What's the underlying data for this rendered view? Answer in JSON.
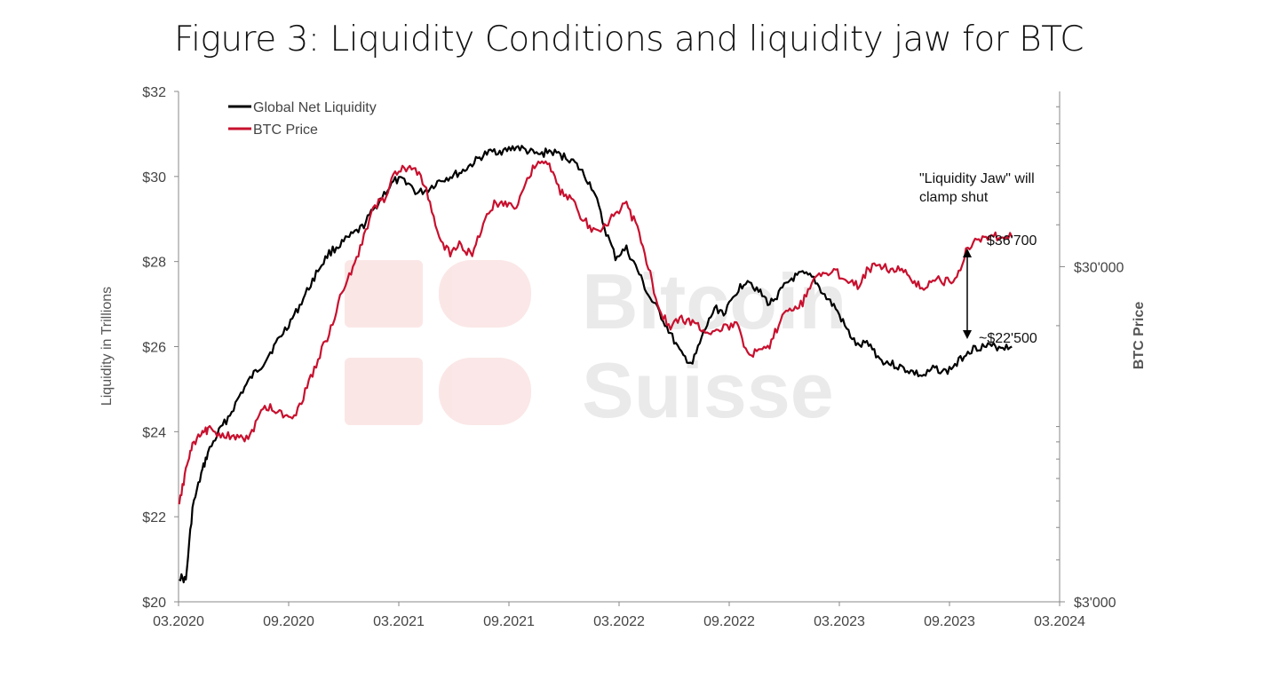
{
  "title": "Figure 3: Liquidity Conditions and liquidity jaw for BTC",
  "colors": {
    "liquidity": "#000000",
    "btc": "#c8102e",
    "axis": "#888888",
    "text": "#444444"
  },
  "watermark": {
    "line1": "Bitcoin",
    "line2": "Suisse"
  },
  "chart_data": {
    "type": "line",
    "title": "Figure 3: Liquidity Conditions and liquidity jaw for BTC",
    "x_ticks": [
      "03.2020",
      "09.2020",
      "03.2021",
      "09.2021",
      "03.2022",
      "09.2022",
      "03.2023",
      "09.2023",
      "03.2024"
    ],
    "x_range": [
      "2020-03",
      "2024-03"
    ],
    "y_left": {
      "label": "Liquidity in Trillions",
      "range": [
        20,
        32
      ],
      "ticks": [
        20,
        22,
        24,
        26,
        28,
        30,
        32
      ],
      "tick_labels": [
        "$20",
        "$22",
        "$24",
        "$26",
        "$28",
        "$30",
        "$32"
      ]
    },
    "y_right": {
      "label": "BTC Price",
      "scale": "log",
      "range": [
        3000,
        100000
      ],
      "tick_labels": [
        {
          "value": 3000,
          "label": "$3'000"
        },
        {
          "value": 30000,
          "label": "$30'000"
        }
      ],
      "minor_ticks": [
        4000,
        5000,
        6000,
        7000,
        8000,
        9000,
        10000,
        20000,
        40000,
        50000,
        60000,
        70000,
        80000,
        90000
      ]
    },
    "legend": {
      "position": "top-left",
      "entries": [
        "Global Net Liquidity",
        "BTC Price"
      ]
    },
    "series": [
      {
        "name": "Global Net Liquidity",
        "axis": "left",
        "x": [
          2020.17,
          2020.2,
          2020.23,
          2020.27,
          2020.3,
          2020.35,
          2020.4,
          2020.45,
          2020.5,
          2020.55,
          2020.6,
          2020.65,
          2020.7,
          2020.75,
          2020.8,
          2020.85,
          2020.9,
          2020.95,
          2021.0,
          2021.05,
          2021.1,
          2021.15,
          2021.2,
          2021.25,
          2021.3,
          2021.35,
          2021.4,
          2021.45,
          2021.5,
          2021.55,
          2021.6,
          2021.65,
          2021.7,
          2021.75,
          2021.8,
          2021.85,
          2021.9,
          2021.95,
          2022.0,
          2022.05,
          2022.1,
          2022.15,
          2022.2,
          2022.25,
          2022.3,
          2022.35,
          2022.4,
          2022.45,
          2022.5,
          2022.55,
          2022.6,
          2022.65,
          2022.7,
          2022.75,
          2022.8,
          2022.85,
          2022.9,
          2022.95,
          2023.0,
          2023.05,
          2023.1,
          2023.15,
          2023.2,
          2023.25,
          2023.3,
          2023.35,
          2023.4,
          2023.45,
          2023.5,
          2023.55,
          2023.6,
          2023.65,
          2023.7,
          2023.75,
          2023.8,
          2023.85,
          2023.9,
          2023.95
        ],
        "values": [
          20.6,
          20.5,
          22.2,
          23.0,
          23.5,
          24.0,
          24.4,
          24.9,
          25.3,
          25.6,
          26.0,
          26.4,
          26.8,
          27.3,
          27.8,
          28.2,
          28.4,
          28.6,
          28.8,
          29.2,
          29.6,
          29.9,
          29.9,
          29.6,
          29.7,
          29.9,
          30.0,
          30.1,
          30.3,
          30.5,
          30.6,
          30.6,
          30.7,
          30.6,
          30.5,
          30.6,
          30.5,
          30.4,
          30.1,
          29.7,
          28.8,
          28.1,
          28.3,
          27.8,
          27.2,
          26.8,
          26.3,
          25.8,
          25.6,
          26.3,
          26.9,
          26.8,
          27.3,
          27.6,
          27.3,
          27.0,
          27.3,
          27.6,
          27.7,
          27.6,
          27.2,
          26.9,
          26.4,
          26.0,
          26.1,
          25.7,
          25.6,
          25.5,
          25.4,
          25.3,
          25.5,
          25.4,
          25.6,
          25.9,
          26.0,
          26.0,
          26.0,
          26.0
        ],
        "end_annotation": "~$22'500"
      },
      {
        "name": "BTC Price",
        "axis": "right",
        "x": [
          2020.17,
          2020.2,
          2020.23,
          2020.27,
          2020.3,
          2020.35,
          2020.4,
          2020.45,
          2020.5,
          2020.55,
          2020.6,
          2020.65,
          2020.7,
          2020.75,
          2020.8,
          2020.85,
          2020.9,
          2020.95,
          2021.0,
          2021.05,
          2021.1,
          2021.15,
          2021.2,
          2021.25,
          2021.3,
          2021.35,
          2021.4,
          2021.45,
          2021.5,
          2021.55,
          2021.6,
          2021.65,
          2021.7,
          2021.75,
          2021.8,
          2021.85,
          2021.9,
          2021.95,
          2022.0,
          2022.05,
          2022.1,
          2022.15,
          2022.2,
          2022.25,
          2022.3,
          2022.35,
          2022.4,
          2022.45,
          2022.5,
          2022.55,
          2022.6,
          2022.65,
          2022.7,
          2022.75,
          2022.8,
          2022.85,
          2022.9,
          2022.95,
          2023.0,
          2023.05,
          2023.1,
          2023.15,
          2023.2,
          2023.25,
          2023.3,
          2023.35,
          2023.4,
          2023.45,
          2023.5,
          2023.55,
          2023.6,
          2023.65,
          2023.7,
          2023.75,
          2023.8,
          2023.85,
          2023.9,
          2023.95
        ],
        "values": [
          5800,
          7500,
          8700,
          9500,
          9800,
          9600,
          9300,
          9200,
          9500,
          11500,
          11300,
          10700,
          11000,
          13000,
          16000,
          19000,
          24000,
          29000,
          35000,
          45000,
          48000,
          57000,
          59000,
          58000,
          49000,
          36000,
          33000,
          35000,
          32000,
          41000,
          46000,
          47000,
          45000,
          55000,
          62000,
          60000,
          50000,
          48000,
          42000,
          38000,
          40000,
          43000,
          46000,
          39000,
          30000,
          22000,
          20000,
          21000,
          20500,
          19500,
          19200,
          19800,
          20000,
          16800,
          16500,
          17200,
          21000,
          22500,
          23500,
          28000,
          28500,
          29000,
          27500,
          26500,
          29500,
          30500,
          29500,
          29800,
          26500,
          26200,
          27500,
          27000,
          27500,
          34500,
          36500,
          37000,
          36700,
          36700
        ],
        "end_annotation": "$36'700"
      }
    ],
    "annotations": [
      {
        "text_lines": [
          "\"Liquidity Jaw\" will",
          "clamp shut"
        ],
        "position": "top-right"
      }
    ]
  }
}
